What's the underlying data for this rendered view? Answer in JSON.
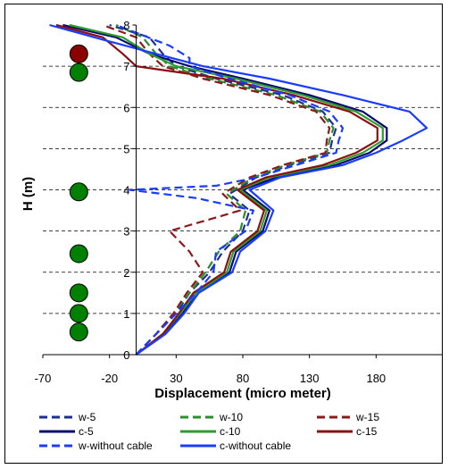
{
  "chart_data": {
    "type": "line",
    "title": "",
    "xlabel": "Displacement (micro meter)",
    "ylabel": "H (m)",
    "xlim": [
      -70,
      230
    ],
    "ylim": [
      0,
      8
    ],
    "x_ticks": [
      "-70",
      "-20",
      "30",
      "80",
      "130",
      "180"
    ],
    "y_ticks": [
      "0",
      "1",
      "2",
      "3",
      "4",
      "5",
      "6",
      "7",
      "8"
    ],
    "grid": "horizontal dashed",
    "legend_position": "bottom",
    "markers": [
      {
        "color": "#8b0000",
        "x": -43,
        "y": 7.3
      },
      {
        "color": "#008000",
        "x": -43,
        "y": 6.85
      },
      {
        "color": "#008000",
        "x": -43,
        "y": 3.95
      },
      {
        "color": "#008000",
        "x": -43,
        "y": 2.45
      },
      {
        "color": "#008000",
        "x": -43,
        "y": 1.5
      },
      {
        "color": "#008000",
        "x": -43,
        "y": 1.0
      },
      {
        "color": "#008000",
        "x": -43,
        "y": 0.55
      }
    ],
    "series": [
      {
        "name": "w-5",
        "color": "#1f2f8f",
        "dash": true,
        "points": [
          [
            0,
            0
          ],
          [
            15,
            0.5
          ],
          [
            30,
            1.0
          ],
          [
            40,
            1.5
          ],
          [
            55,
            2.0
          ],
          [
            65,
            2.5
          ],
          [
            80,
            3.0
          ],
          [
            85,
            3.5
          ],
          [
            70,
            3.9
          ],
          [
            90,
            4.3
          ],
          [
            115,
            4.6
          ],
          [
            145,
            4.9
          ],
          [
            147,
            5.2
          ],
          [
            150,
            5.5
          ],
          [
            140,
            5.9
          ],
          [
            110,
            6.3
          ],
          [
            60,
            6.7
          ],
          [
            30,
            7.0
          ],
          [
            20,
            7.3
          ],
          [
            10,
            7.7
          ],
          [
            -20,
            8.0
          ]
        ]
      },
      {
        "name": "w-10",
        "color": "#2e8b2e",
        "dash": true,
        "points": [
          [
            0,
            0
          ],
          [
            15,
            0.5
          ],
          [
            28,
            1.0
          ],
          [
            40,
            1.5
          ],
          [
            52,
            2.0
          ],
          [
            62,
            2.5
          ],
          [
            78,
            3.0
          ],
          [
            82,
            3.5
          ],
          [
            68,
            3.9
          ],
          [
            88,
            4.3
          ],
          [
            112,
            4.6
          ],
          [
            143,
            4.9
          ],
          [
            145,
            5.2
          ],
          [
            148,
            5.5
          ],
          [
            138,
            5.9
          ],
          [
            105,
            6.3
          ],
          [
            55,
            6.7
          ],
          [
            25,
            7.0
          ],
          [
            15,
            7.3
          ],
          [
            5,
            7.7
          ],
          [
            -15,
            8.0
          ]
        ]
      },
      {
        "name": "w-15",
        "color": "#8b1a1a",
        "dash": true,
        "points": [
          [
            0,
            0
          ],
          [
            15,
            0.5
          ],
          [
            28,
            1.0
          ],
          [
            38,
            1.5
          ],
          [
            50,
            2.0
          ],
          [
            40,
            2.5
          ],
          [
            25,
            3.0
          ],
          [
            78,
            3.5
          ],
          [
            65,
            3.9
          ],
          [
            85,
            4.3
          ],
          [
            110,
            4.6
          ],
          [
            142,
            4.9
          ],
          [
            143,
            5.2
          ],
          [
            145,
            5.5
          ],
          [
            135,
            5.9
          ],
          [
            100,
            6.3
          ],
          [
            50,
            6.7
          ],
          [
            20,
            7.0
          ],
          [
            10,
            7.3
          ],
          [
            0,
            7.7
          ],
          [
            -25,
            8.0
          ]
        ]
      },
      {
        "name": "c-5",
        "color": "#0a0a6e",
        "dash": false,
        "points": [
          [
            0,
            0
          ],
          [
            20,
            0.5
          ],
          [
            35,
            1.0
          ],
          [
            45,
            1.5
          ],
          [
            70,
            2.0
          ],
          [
            75,
            2.5
          ],
          [
            95,
            3.0
          ],
          [
            100,
            3.5
          ],
          [
            80,
            4.0
          ],
          [
            105,
            4.3
          ],
          [
            150,
            4.6
          ],
          [
            175,
            4.9
          ],
          [
            188,
            5.2
          ],
          [
            188,
            5.5
          ],
          [
            170,
            5.9
          ],
          [
            130,
            6.3
          ],
          [
            80,
            6.7
          ],
          [
            40,
            7.0
          ],
          [
            10,
            7.3
          ],
          [
            -15,
            7.7
          ],
          [
            -55,
            8.0
          ]
        ]
      },
      {
        "name": "c-10",
        "color": "#2e9b2e",
        "dash": false,
        "points": [
          [
            0,
            0
          ],
          [
            20,
            0.5
          ],
          [
            33,
            1.0
          ],
          [
            45,
            1.5
          ],
          [
            68,
            2.0
          ],
          [
            73,
            2.5
          ],
          [
            93,
            3.0
          ],
          [
            98,
            3.5
          ],
          [
            78,
            4.0
          ],
          [
            100,
            4.3
          ],
          [
            145,
            4.6
          ],
          [
            170,
            4.9
          ],
          [
            185,
            5.2
          ],
          [
            185,
            5.5
          ],
          [
            165,
            5.9
          ],
          [
            125,
            6.3
          ],
          [
            75,
            6.7
          ],
          [
            30,
            7.0
          ],
          [
            10,
            7.3
          ],
          [
            -10,
            7.7
          ],
          [
            -50,
            8.0
          ]
        ]
      },
      {
        "name": "c-15",
        "color": "#8b1010",
        "dash": false,
        "points": [
          [
            0,
            0
          ],
          [
            20,
            0.5
          ],
          [
            32,
            1.0
          ],
          [
            43,
            1.5
          ],
          [
            66,
            2.0
          ],
          [
            71,
            2.5
          ],
          [
            91,
            3.0
          ],
          [
            96,
            3.5
          ],
          [
            76,
            4.0
          ],
          [
            97,
            4.3
          ],
          [
            140,
            4.6
          ],
          [
            165,
            4.9
          ],
          [
            181,
            5.2
          ],
          [
            181,
            5.5
          ],
          [
            160,
            5.9
          ],
          [
            118,
            6.3
          ],
          [
            65,
            6.7
          ],
          [
            0,
            7.0
          ],
          [
            -10,
            7.3
          ],
          [
            -25,
            7.7
          ],
          [
            -60,
            8.0
          ]
        ]
      },
      {
        "name": "w-without cable",
        "color": "#1a3cff",
        "dash": true,
        "points": [
          [
            0,
            0
          ],
          [
            15,
            0.5
          ],
          [
            30,
            1.0
          ],
          [
            45,
            1.5
          ],
          [
            58,
            2.0
          ],
          [
            60,
            2.5
          ],
          [
            82,
            3.0
          ],
          [
            88,
            3.5
          ],
          [
            45,
            3.8
          ],
          [
            -5,
            4.0
          ],
          [
            60,
            4.1
          ],
          [
            90,
            4.3
          ],
          [
            120,
            4.6
          ],
          [
            150,
            4.9
          ],
          [
            152,
            5.2
          ],
          [
            155,
            5.5
          ],
          [
            145,
            5.9
          ],
          [
            115,
            6.3
          ],
          [
            70,
            6.7
          ],
          [
            40,
            7.0
          ],
          [
            40,
            7.2
          ],
          [
            25,
            7.5
          ],
          [
            -15,
            8.0
          ]
        ]
      },
      {
        "name": "c-without cable",
        "color": "#1a3cff",
        "dash": false,
        "points": [
          [
            0,
            0
          ],
          [
            22,
            0.5
          ],
          [
            36,
            1.0
          ],
          [
            47,
            1.5
          ],
          [
            72,
            2.0
          ],
          [
            78,
            2.5
          ],
          [
            97,
            3.0
          ],
          [
            103,
            3.5
          ],
          [
            85,
            4.0
          ],
          [
            108,
            4.3
          ],
          [
            155,
            4.6
          ],
          [
            180,
            4.9
          ],
          [
            200,
            5.2
          ],
          [
            218,
            5.5
          ],
          [
            205,
            5.9
          ],
          [
            155,
            6.3
          ],
          [
            100,
            6.7
          ],
          [
            50,
            7.0
          ],
          [
            15,
            7.3
          ],
          [
            -20,
            7.6
          ],
          [
            -65,
            8.0
          ]
        ]
      }
    ]
  }
}
